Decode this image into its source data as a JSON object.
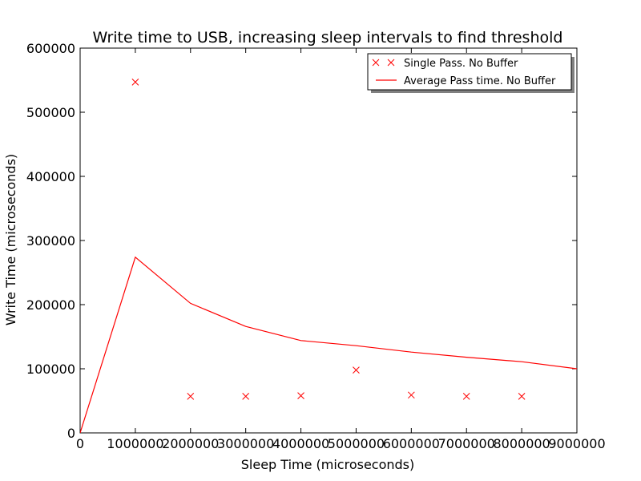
{
  "chart_data": {
    "type": "line",
    "title": "Write time to USB, increasing sleep intervals to find threshold",
    "xlabel": "Sleep Time (microseconds)",
    "ylabel": "Write Time (microseconds)",
    "xlim": [
      0,
      9000000
    ],
    "ylim": [
      0,
      600000
    ],
    "x_ticks": [
      0,
      1000000,
      2000000,
      3000000,
      4000000,
      5000000,
      6000000,
      7000000,
      8000000,
      9000000
    ],
    "y_ticks": [
      0,
      100000,
      200000,
      300000,
      400000,
      500000,
      600000
    ],
    "x_tick_labels": [
      "0",
      "1000000",
      "2000000",
      "3000000",
      "4000000",
      "5000000",
      "6000000",
      "7000000",
      "8000000",
      "9000000"
    ],
    "y_tick_labels": [
      "0",
      "100000",
      "200000",
      "300000",
      "400000",
      "500000",
      "600000"
    ],
    "grid": false,
    "legend_position": "top-right",
    "series": [
      {
        "name": "Single Pass. No Buffer",
        "style": "scatter",
        "marker": "x",
        "color": "#ff0000",
        "points": [
          [
            1000000,
            547000
          ],
          [
            2000000,
            57000
          ],
          [
            3000000,
            57000
          ],
          [
            4000000,
            58000
          ],
          [
            5000000,
            98000
          ],
          [
            6000000,
            59000
          ],
          [
            7000000,
            57000
          ],
          [
            8000000,
            57000
          ]
        ]
      },
      {
        "name": "Average Pass time. No Buffer",
        "style": "line",
        "color": "#ff0000",
        "points": [
          [
            0,
            0
          ],
          [
            1000000,
            274000
          ],
          [
            2000000,
            202000
          ],
          [
            3000000,
            166000
          ],
          [
            4000000,
            144000
          ],
          [
            5000000,
            136000
          ],
          [
            6000000,
            126000
          ],
          [
            7000000,
            118000
          ],
          [
            8000000,
            111000
          ],
          [
            9000000,
            100000
          ]
        ]
      }
    ]
  }
}
